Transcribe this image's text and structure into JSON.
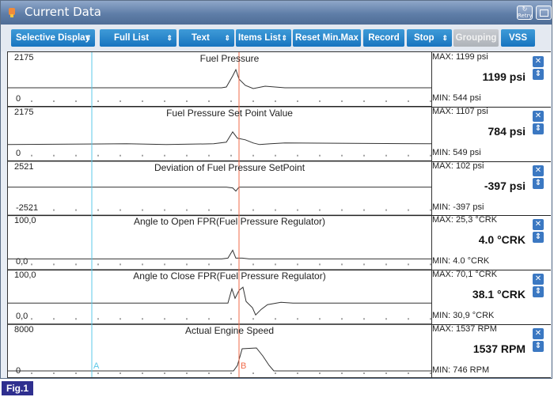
{
  "window": {
    "title": "Current Data",
    "retry_label": "Retry"
  },
  "toolbar": {
    "buttons": [
      {
        "label": "Selective Display",
        "dropdown": true
      },
      {
        "label": "Full List",
        "dropdown": true
      },
      {
        "label": "Text",
        "dropdown": true
      },
      {
        "label": "Items List",
        "dropdown": true
      },
      {
        "label": "Reset Min.Max",
        "dropdown": false
      },
      {
        "label": "Record",
        "dropdown": false
      },
      {
        "label": "Stop",
        "dropdown": true
      },
      {
        "label": "Grouping",
        "dropdown": false,
        "disabled": true
      },
      {
        "label": "VSS",
        "dropdown": false
      }
    ],
    "dropdown_glyph": "⇕"
  },
  "channels": [
    {
      "title": "Fuel Pressure",
      "scale_max": "2175",
      "scale_min": "0",
      "max": "MAX:  1199 psi",
      "current": "1199 psi",
      "min": "MIN:  544 psi"
    },
    {
      "title": "Fuel Pressure Set Point Value",
      "scale_max": "2175",
      "scale_min": "0",
      "max": "MAX:  1107 psi",
      "current": "784 psi",
      "min": "MIN:  549 psi"
    },
    {
      "title": "Deviation of Fuel Pressure SetPoint",
      "scale_max": "2521",
      "scale_min": "-2521",
      "max": "MAX:   102 psi",
      "current": "-397 psi",
      "min": "MIN:  -397 psi"
    },
    {
      "title": "Angle to Open FPR(Fuel Pressure Regulator)",
      "scale_max": "100,0",
      "scale_min": "0,0",
      "max": "MAX:  25,3 °CRK",
      "current": "4.0 °CRK",
      "min": "MIN:  4.0 °CRK"
    },
    {
      "title": "Angle to Close FPR(Fuel Pressure Regulator)",
      "scale_max": "100,0",
      "scale_min": "0,0",
      "max": "MAX:  70,1 °CRK",
      "current": "38.1 °CRK",
      "min": "MIN:  30,9 °CRK"
    },
    {
      "title": "Actual Engine Speed",
      "scale_max": "8000",
      "scale_min": "0",
      "max": "MAX:  1537 RPM",
      "current": "1537 RPM",
      "min": "MIN:  746 RPM"
    }
  ],
  "cursors": {
    "a_label": "A",
    "b_label": "B",
    "a_color": "#5bc8e8",
    "b_color": "#f06b4a"
  },
  "icons": {
    "close": "close-icon",
    "scroll": "scroll-icon"
  },
  "figure_label": "Fig.1"
}
